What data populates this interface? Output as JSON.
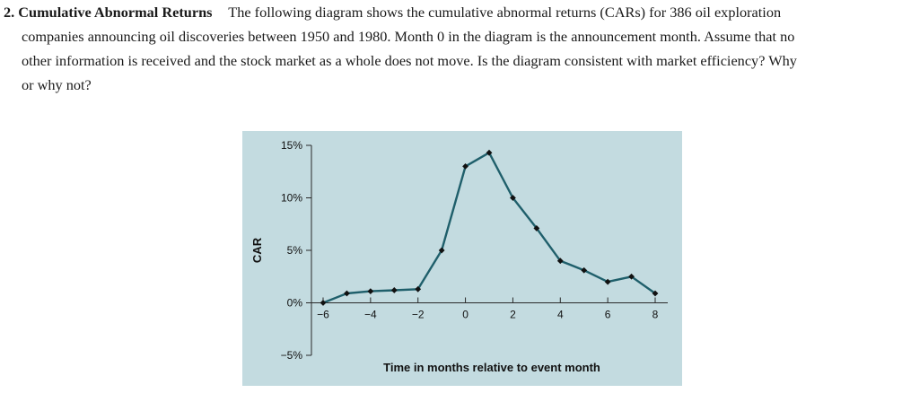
{
  "problem": {
    "number": "2.",
    "heading": "Cumulative Abnormal Returns",
    "lines": [
      "The following diagram shows the cumulative abnormal returns (CARs) for 386 oil exploration",
      "companies announcing oil discoveries between 1950 and 1980. Month 0 in the diagram is the announcement month. Assume that no",
      "other information is received and the stock market as a whole does not move. Is the diagram consistent with market efficiency? Why",
      "or why not?"
    ]
  },
  "chart_data": {
    "type": "line",
    "xlabel": "Time in months relative to event month",
    "ylabel": "CAR",
    "xlim": [
      -6,
      8
    ],
    "ylim": [
      -5,
      15
    ],
    "x_ticks": [
      -6,
      -4,
      -2,
      0,
      2,
      4,
      6,
      8
    ],
    "x_tick_labels": [
      "−6",
      "−4",
      "−2",
      "0",
      "2",
      "4",
      "6",
      "8"
    ],
    "y_ticks": [
      15,
      10,
      5,
      0,
      -5
    ],
    "y_tick_labels": [
      "15%",
      "10%",
      "5%",
      "0%",
      "−5%"
    ],
    "grid": false,
    "series": [
      {
        "x": [
          -6,
          -5,
          -4,
          -3,
          -2,
          -1,
          0,
          1,
          2,
          3,
          4,
          5,
          6,
          7,
          8
        ],
        "y": [
          0,
          0.9,
          1.1,
          1.2,
          1.3,
          5.0,
          13.0,
          14.3,
          10.0,
          7.1,
          4.0,
          3.1,
          2.0,
          2.5,
          0.9
        ]
      }
    ],
    "colors": {
      "line": "#1f5f6b",
      "marker": "#111111",
      "background": "#c3dbe0"
    }
  }
}
